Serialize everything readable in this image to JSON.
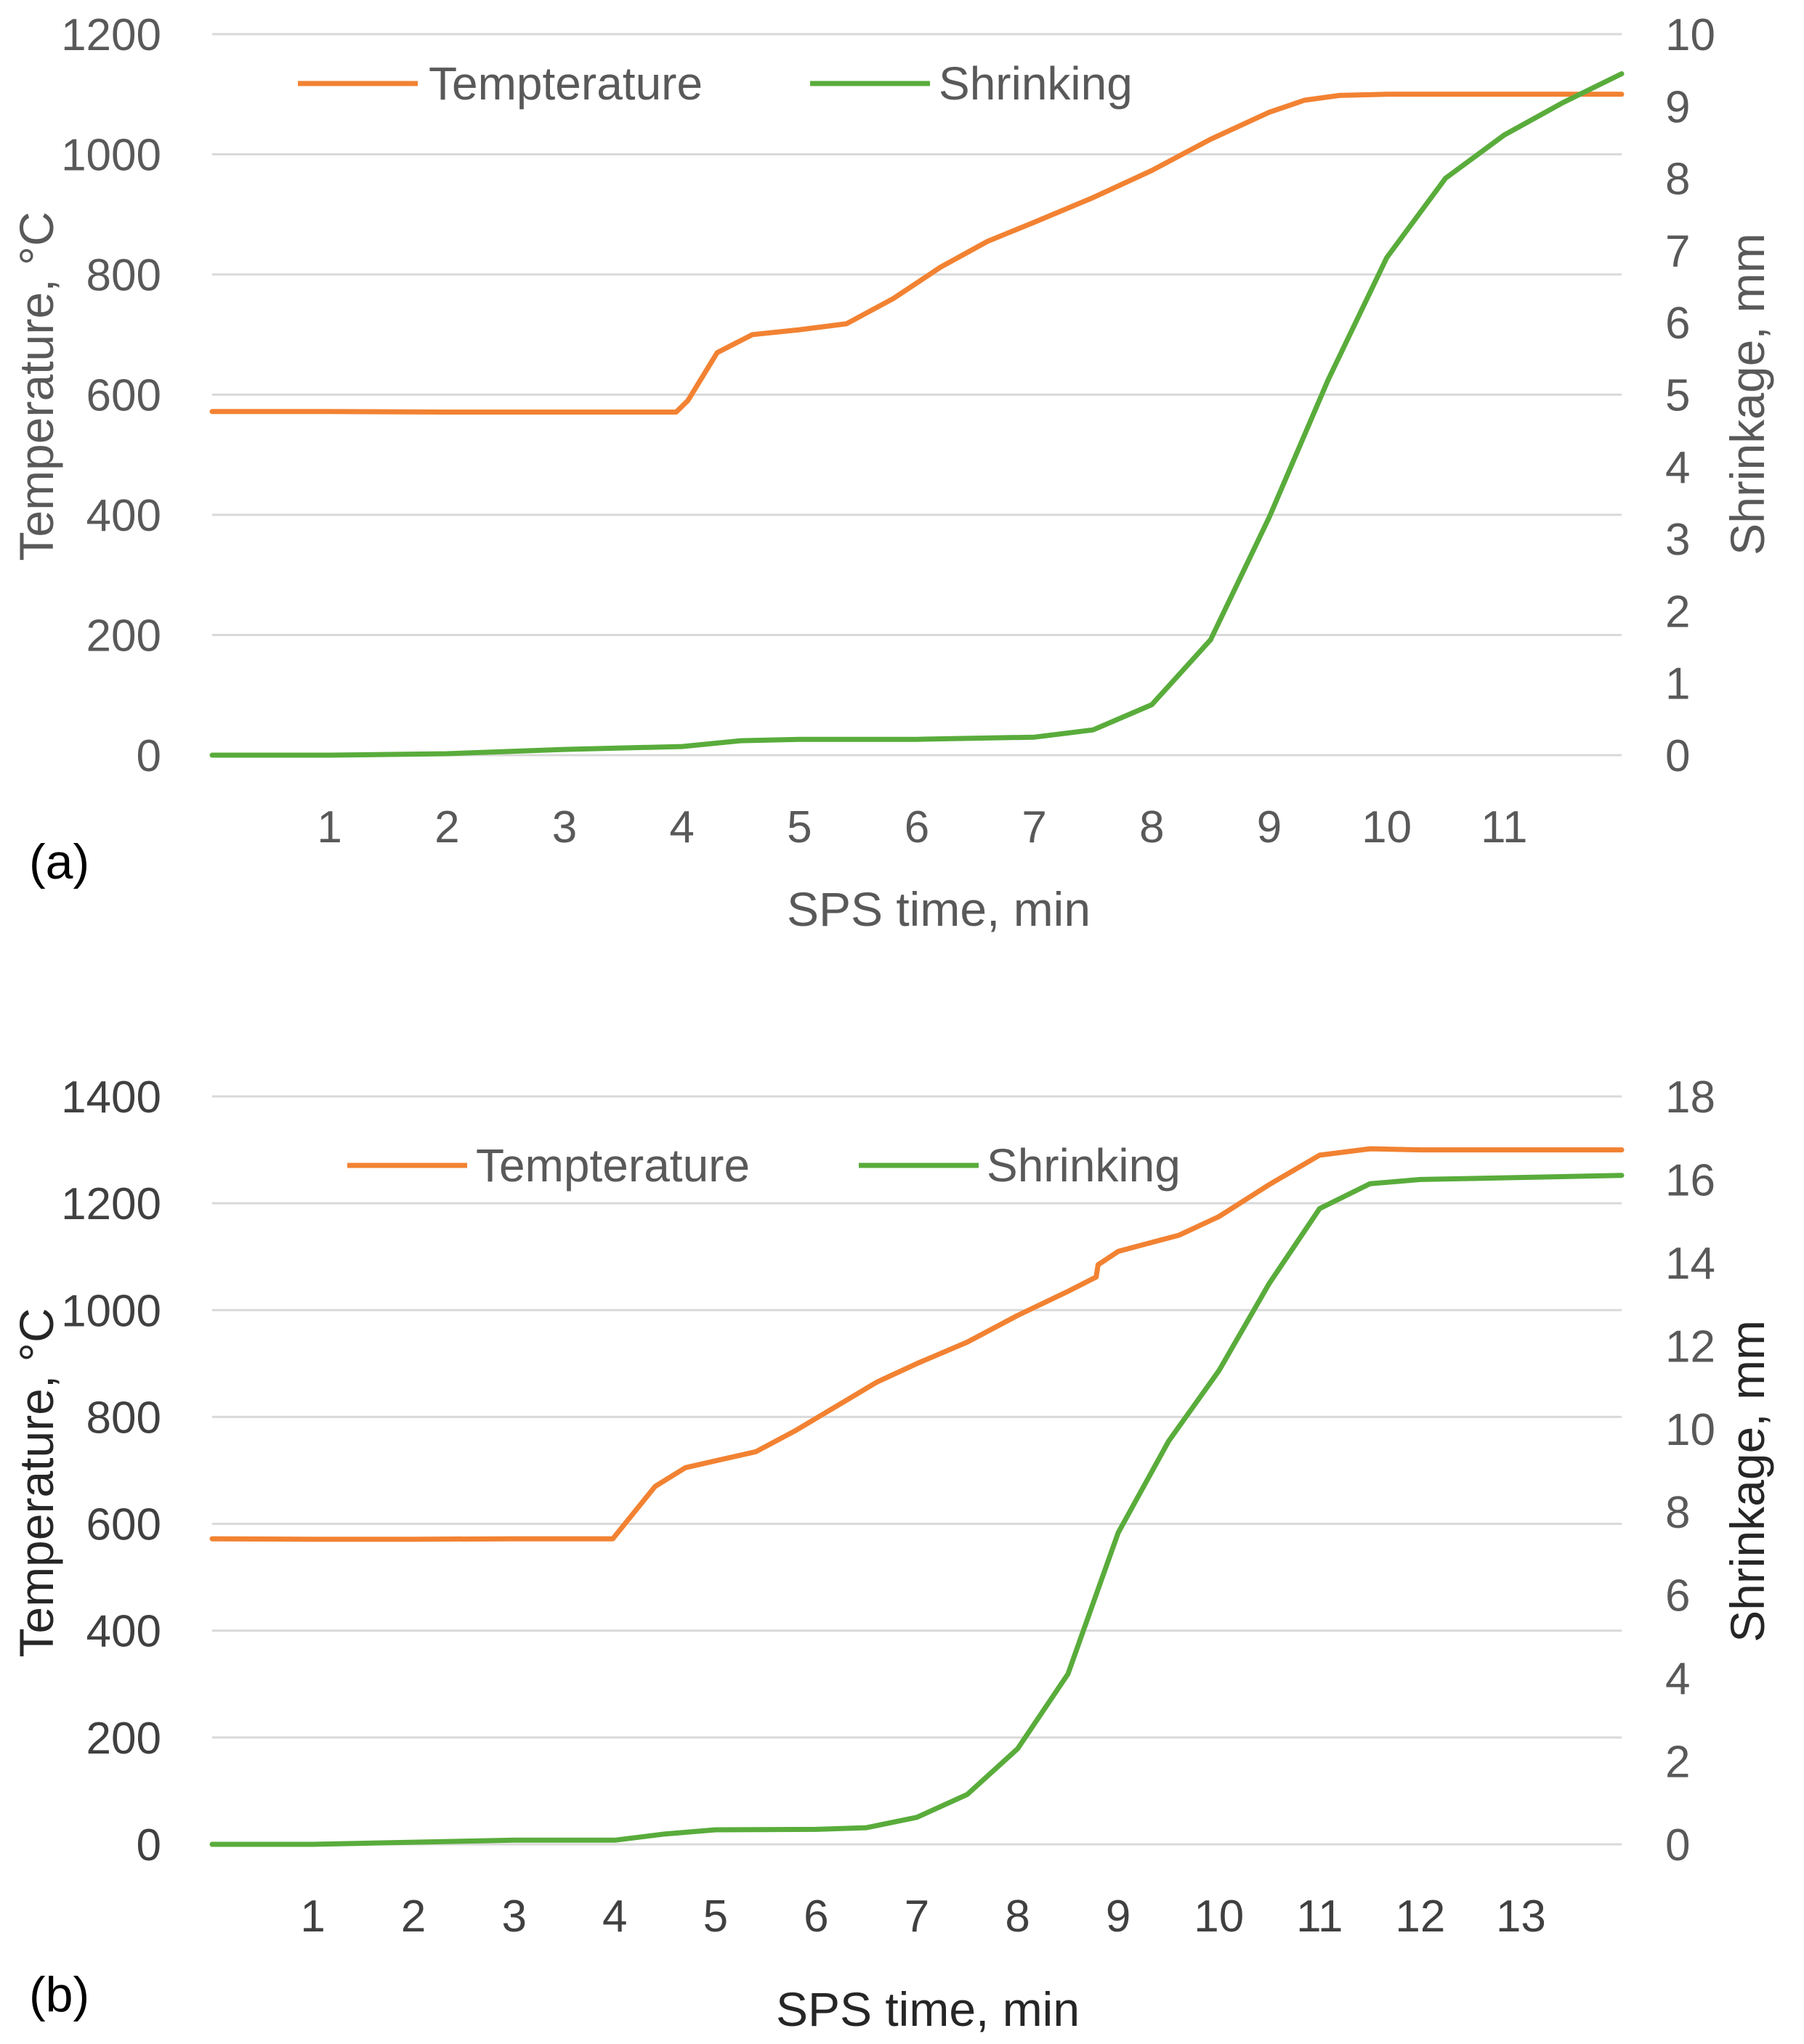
{
  "colors": {
    "temperature": "#f28232",
    "shrinking": "#59ac3b",
    "grid": "#d9d9d9"
  },
  "chart_data": [
    {
      "id": "a",
      "type": "line",
      "panel_label": "(a)",
      "xlabel": "SPS time, min",
      "ylabel_left": "Temperature, °C",
      "ylabel_right": "Shrinkage, mm",
      "xlim": [
        0,
        12
      ],
      "x_ticks": [
        "1",
        "2",
        "3",
        "4",
        "5",
        "6",
        "7",
        "8",
        "9",
        "10",
        "11"
      ],
      "ylim_left": [
        0,
        1200
      ],
      "y_ticks_left": [
        "0",
        "200",
        "400",
        "600",
        "800",
        "1000",
        "1200"
      ],
      "ylim_right": [
        0,
        10
      ],
      "y_ticks_right": [
        "0",
        "1",
        "2",
        "3",
        "4",
        "5",
        "6",
        "7",
        "8",
        "9",
        "10"
      ],
      "legend": [
        "Tempterature",
        "Shrinking"
      ],
      "series": [
        {
          "name": "Tempterature",
          "axis": "left",
          "color": "#f28232",
          "x": [
            0,
            1,
            2,
            3,
            3.95,
            4.05,
            4.3,
            4.6,
            5,
            5.4,
            5.8,
            6.2,
            6.6,
            7,
            7.5,
            8,
            8.5,
            9,
            9.3,
            9.6,
            10,
            11,
            12
          ],
          "y": [
            572,
            572,
            571,
            571,
            571,
            590,
            670,
            700,
            708,
            718,
            760,
            812,
            855,
            887,
            928,
            973,
            1025,
            1070,
            1090,
            1098,
            1100,
            1100,
            1100
          ]
        },
        {
          "name": "Shrinking",
          "axis": "right",
          "color": "#59ac3b",
          "x": [
            0,
            1,
            2,
            3,
            4,
            4.5,
            5,
            6,
            7,
            7.5,
            8,
            8.5,
            9,
            9.5,
            10,
            10.5,
            11,
            11.5,
            12
          ],
          "y": [
            0,
            0,
            0.02,
            0.08,
            0.12,
            0.2,
            0.22,
            0.22,
            0.25,
            0.35,
            0.7,
            1.6,
            3.3,
            5.2,
            6.9,
            8.0,
            8.6,
            9.05,
            9.45
          ]
        }
      ]
    },
    {
      "id": "b",
      "type": "line",
      "panel_label": "(b)",
      "xlabel": "SPS time, min",
      "ylabel_left": "Temperature, °C",
      "ylabel_right": "Shrinkage, mm",
      "xlim": [
        0,
        14
      ],
      "x_ticks": [
        "1",
        "2",
        "3",
        "4",
        "5",
        "6",
        "7",
        "8",
        "9",
        "10",
        "11",
        "12",
        "13"
      ],
      "ylim_left": [
        0,
        1400
      ],
      "y_ticks_left": [
        "0",
        "200",
        "400",
        "600",
        "800",
        "1000",
        "1200",
        "1400"
      ],
      "ylim_right": [
        0,
        18
      ],
      "y_ticks_right": [
        "0",
        "2",
        "4",
        "6",
        "8",
        "10",
        "12",
        "14",
        "16",
        "18"
      ],
      "legend": [
        "Tempterature",
        "Shrinking"
      ],
      "series": [
        {
          "name": "Tempterature",
          "axis": "left",
          "color": "#f28232",
          "x": [
            0,
            1,
            2,
            3,
            3.98,
            4.1,
            4.4,
            4.7,
            5,
            5.4,
            5.8,
            6.2,
            6.6,
            7,
            7.5,
            8,
            8.5,
            8.78,
            8.8,
            9,
            9.3,
            9.6,
            10,
            10.5,
            11,
            11.5,
            12,
            13,
            14
          ],
          "y": [
            572,
            571,
            571,
            572,
            572,
            600,
            670,
            705,
            718,
            735,
            775,
            820,
            865,
            900,
            940,
            990,
            1035,
            1062,
            1085,
            1110,
            1125,
            1140,
            1175,
            1235,
            1290,
            1302,
            1300,
            1300,
            1300
          ]
        },
        {
          "name": "Shrinking",
          "axis": "right",
          "color": "#59ac3b",
          "x": [
            0,
            1,
            2,
            3,
            4,
            4.5,
            5,
            6,
            6.5,
            7,
            7.5,
            8,
            8.5,
            9,
            9.5,
            10,
            10.5,
            11,
            11.5,
            12,
            13,
            14
          ],
          "y": [
            0,
            0,
            0.05,
            0.1,
            0.1,
            0.25,
            0.35,
            0.36,
            0.4,
            0.65,
            1.2,
            2.3,
            4.1,
            7.5,
            9.7,
            11.4,
            13.5,
            15.3,
            15.9,
            16.0,
            16.05,
            16.1
          ]
        }
      ]
    }
  ]
}
